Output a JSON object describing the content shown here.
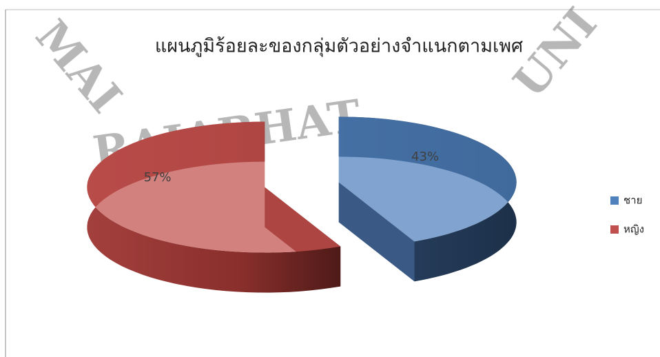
{
  "chart_data": {
    "type": "pie",
    "title": "แผนภูมิร้อยละของกลุ่มตัวอย่างจำแนกตามเพศ",
    "categories": [
      "ชาย",
      "หญิง"
    ],
    "values": [
      43,
      57
    ],
    "value_labels": [
      "43%",
      "57%"
    ],
    "colors": [
      "#4f81bd",
      "#c0504d"
    ],
    "legend": "right",
    "exploded": true,
    "three_d": true,
    "watermark": [
      "MAI",
      "RAJABHAT",
      "UNI"
    ]
  }
}
